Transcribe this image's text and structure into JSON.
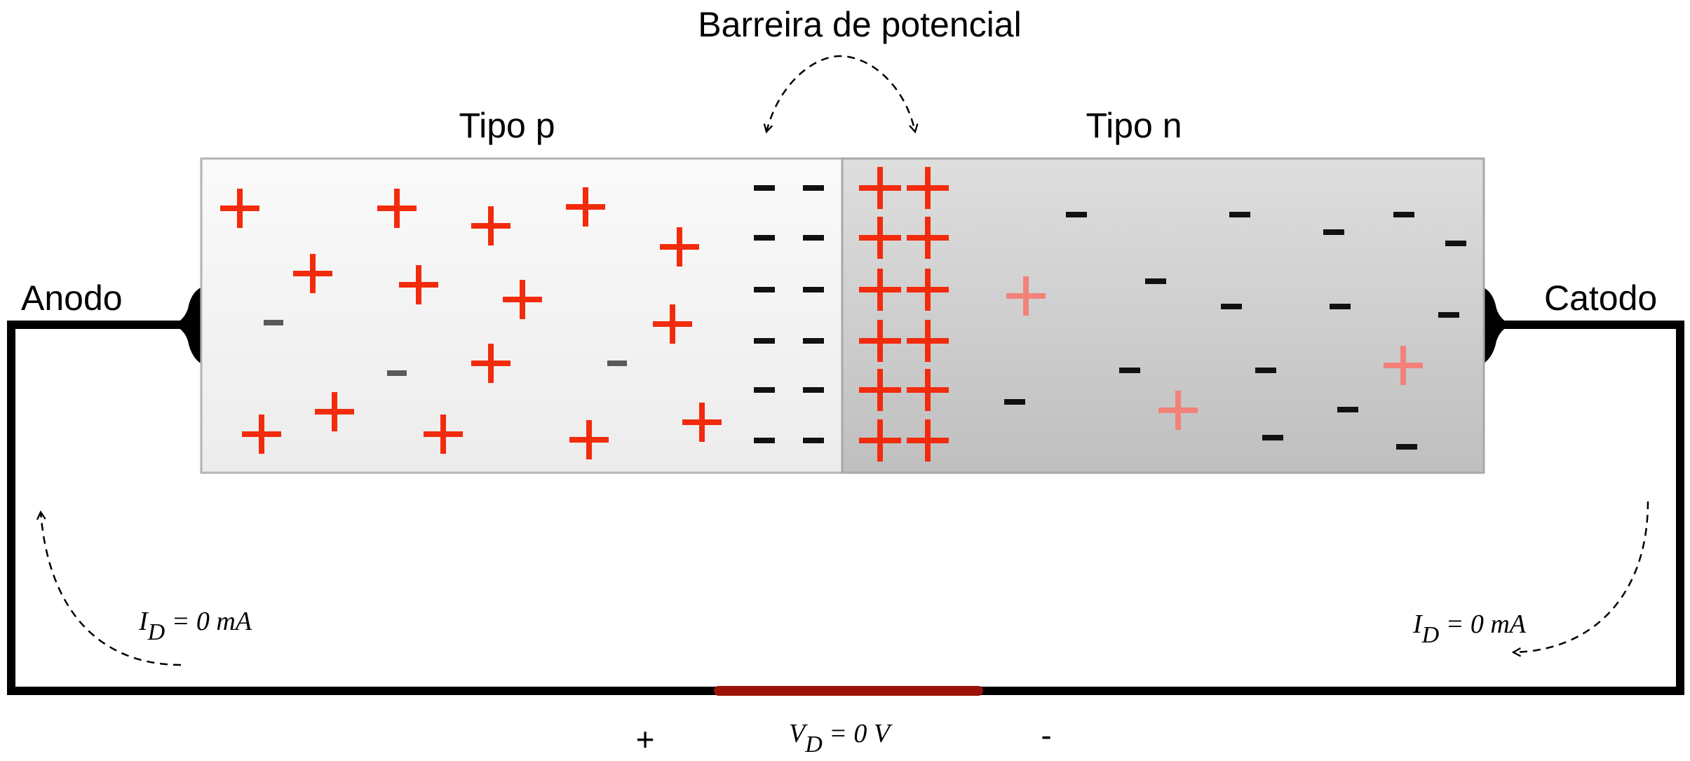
{
  "labels": {
    "barrier": "Barreira de potencial",
    "p_type": "Tipo p",
    "n_type": "Tipo n",
    "anode": "Anodo",
    "cathode": "Catodo",
    "current_left_main": "I",
    "current_left_sub": "D",
    "current_left_rest": " = 0 mA",
    "current_right_main": "I",
    "current_right_sub": "D",
    "current_right_rest": " = 0 mA",
    "voltage_main": "V",
    "voltage_sub": "D",
    "voltage_rest": " = 0 V",
    "plus_sign": "+",
    "minus_sign": "-"
  },
  "colors": {
    "p_region": "#f1f1f1",
    "n_region": "#c7c7c7",
    "hole": "#f22b0d",
    "hole_faint": "#f28279",
    "electron": "#111111",
    "electron_p_side": "#5a5a5a",
    "wire": "#000000",
    "source": "#9a1208"
  }
}
